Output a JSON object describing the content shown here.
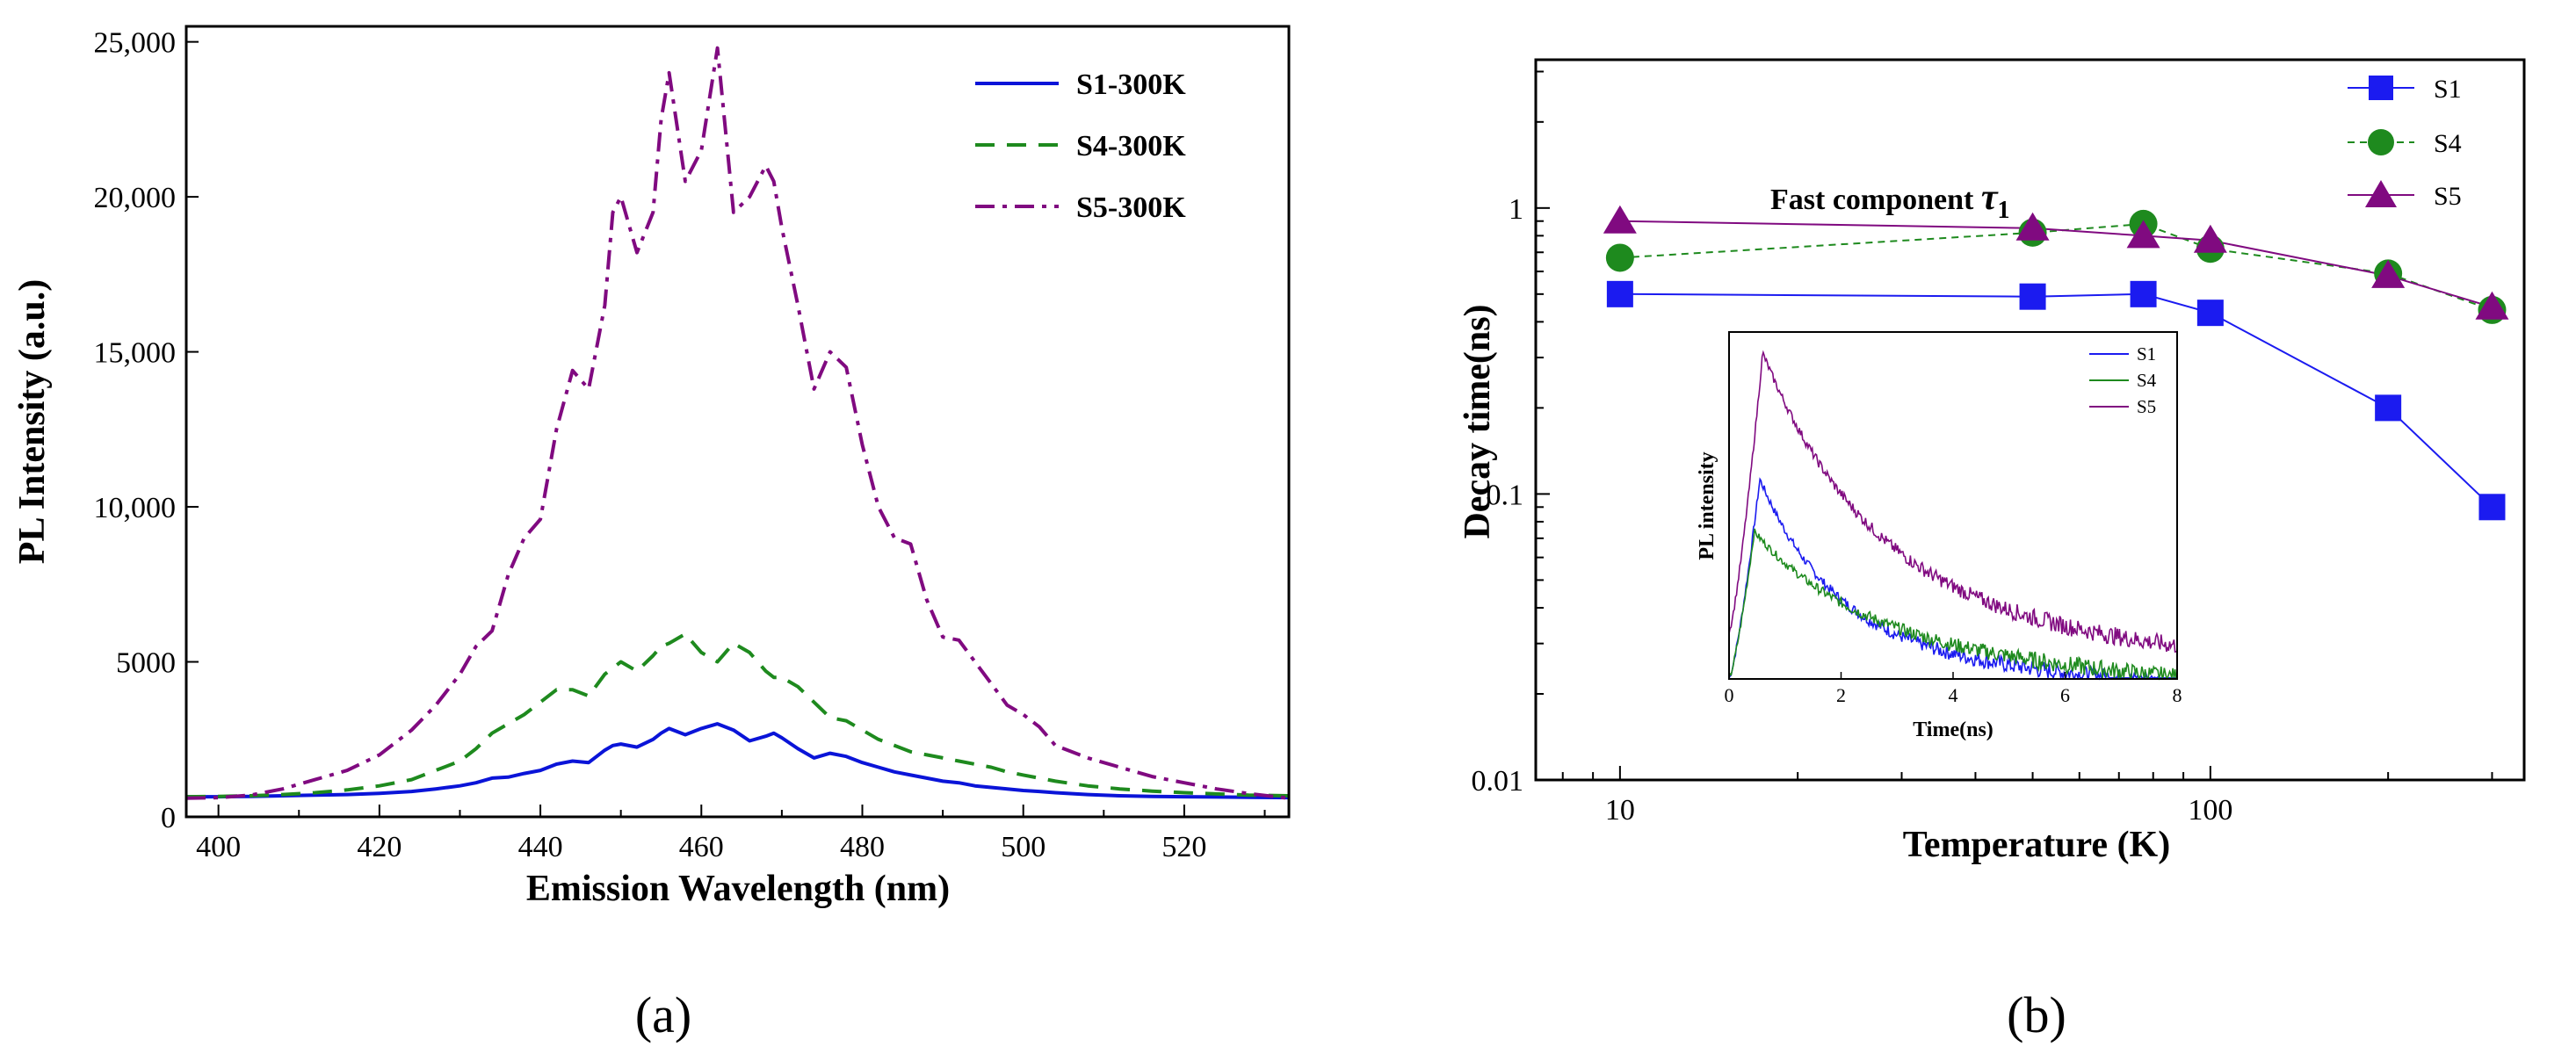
{
  "panel_labels": {
    "a": "(a)",
    "b": "(b)"
  },
  "chart_data": [
    {
      "id": "a",
      "type": "line",
      "xlabel": "Emission Wavelength (nm)",
      "ylabel": "PL Intensity (a.u.)",
      "xlim": [
        396,
        533
      ],
      "ylim": [
        0,
        25500
      ],
      "xticks": [
        400,
        420,
        440,
        460,
        480,
        500,
        520
      ],
      "xtick_labels": [
        "400",
        "420",
        "440",
        "460",
        "480",
        "500",
        "520"
      ],
      "yticks": [
        0,
        5000,
        10000,
        15000,
        20000,
        25000
      ],
      "ytick_labels": [
        "0",
        "5000",
        "10,000",
        "15,000",
        "20,000",
        "25,000"
      ],
      "legend_position": "top-right",
      "x": [
        396,
        400,
        404,
        408,
        412,
        416,
        420,
        424,
        427,
        430,
        432,
        434,
        436,
        438,
        440,
        442,
        444,
        446,
        448,
        449,
        450,
        452,
        454,
        455,
        456,
        458,
        460,
        462,
        464,
        466,
        468,
        469,
        470,
        472,
        474,
        476,
        478,
        480,
        482,
        484,
        486,
        488,
        490,
        492,
        494,
        496,
        498,
        500,
        502,
        504,
        508,
        512,
        516,
        520,
        524,
        528,
        533
      ],
      "series": [
        {
          "name": "S1-300K",
          "color": "#0a14d8",
          "style": "solid",
          "values": [
            650,
            650,
            660,
            680,
            700,
            720,
            760,
            820,
            900,
            1000,
            1100,
            1250,
            1280,
            1400,
            1500,
            1700,
            1800,
            1750,
            2150,
            2300,
            2350,
            2250,
            2500,
            2700,
            2850,
            2650,
            2850,
            3000,
            2800,
            2450,
            2600,
            2700,
            2550,
            2200,
            1900,
            2050,
            1950,
            1750,
            1600,
            1450,
            1350,
            1250,
            1150,
            1100,
            1000,
            950,
            900,
            850,
            820,
            780,
            720,
            680,
            660,
            650,
            640,
            630,
            620
          ]
        },
        {
          "name": "S4-300K",
          "color": "#1e8a1e",
          "style": "dashed",
          "values": [
            650,
            660,
            680,
            720,
            780,
            870,
            1000,
            1200,
            1500,
            1800,
            2200,
            2700,
            3000,
            3300,
            3700,
            4100,
            4100,
            3900,
            4600,
            4800,
            5000,
            4700,
            5200,
            5500,
            5600,
            5900,
            5300,
            5000,
            5600,
            5300,
            4700,
            4500,
            4500,
            4200,
            3700,
            3200,
            3100,
            2800,
            2500,
            2300,
            2100,
            2000,
            1900,
            1800,
            1700,
            1600,
            1450,
            1350,
            1250,
            1150,
            1000,
            900,
            830,
            780,
            740,
            700,
            680
          ]
        },
        {
          "name": "S5-300K",
          "color": "#800a80",
          "style": "dashdot",
          "values": [
            600,
            620,
            700,
            900,
            1200,
            1500,
            2000,
            2800,
            3600,
            4600,
            5500,
            6000,
            7800,
            9000,
            9600,
            12500,
            14400,
            13800,
            16500,
            19500,
            20000,
            18200,
            19500,
            22500,
            24000,
            20500,
            21500,
            24800,
            19500,
            20000,
            21000,
            20500,
            19000,
            16500,
            13800,
            15000,
            14500,
            12000,
            10000,
            9000,
            8800,
            7000,
            5800,
            5700,
            5000,
            4300,
            3600,
            3300,
            2900,
            2300,
            1900,
            1600,
            1300,
            1100,
            900,
            750,
            600
          ]
        }
      ]
    },
    {
      "id": "b",
      "type": "line",
      "scale": "log-log",
      "xlabel": "Temperature (K)",
      "ylabel": "Decay time(ns)",
      "xlim": [
        7.2,
        340
      ],
      "ylim": [
        0.01,
        3.3
      ],
      "xticks": [
        10,
        100
      ],
      "xtick_labels": [
        "10",
        "100"
      ],
      "yticks": [
        0.01,
        0.1,
        1
      ],
      "ytick_labels": [
        "0.01",
        "0.1",
        "1"
      ],
      "annotation_text": "Fast component ",
      "annotation_symbol": "τ",
      "annotation_subscript": "1",
      "legend_position": "top-right",
      "series": [
        {
          "name": "S1",
          "color": "#1b1bf0",
          "marker": "square",
          "x": [
            10,
            50,
            77,
            100,
            200,
            300
          ],
          "values": [
            0.5,
            0.49,
            0.5,
            0.43,
            0.2,
            0.09
          ]
        },
        {
          "name": "S4",
          "color": "#1e8a1e",
          "marker": "circle",
          "x": [
            10,
            50,
            77,
            100,
            200,
            300
          ],
          "values": [
            0.67,
            0.82,
            0.88,
            0.72,
            0.59,
            0.44
          ]
        },
        {
          "name": "S5",
          "color": "#800a80",
          "marker": "triangle",
          "x": [
            10,
            50,
            77,
            100,
            200,
            300
          ],
          "values": [
            0.9,
            0.85,
            0.8,
            0.77,
            0.58,
            0.45
          ]
        }
      ],
      "inset": {
        "type": "line",
        "xlabel": "Time(ns)",
        "ylabel": "PL intensity",
        "xlim": [
          0,
          8
        ],
        "ylim": [
          0,
          0.33
        ],
        "xticks": [
          0,
          2,
          4,
          6,
          8
        ],
        "xtick_labels": [
          "0",
          "2",
          "4",
          "6",
          "8"
        ],
        "legend_position": "top-right",
        "series": [
          {
            "name": "S1",
            "color": "#1b1bf0",
            "peak": 0.19,
            "peak_t": 0.55,
            "start": 0.0,
            "tail": 0.025,
            "tau": 1.35
          },
          {
            "name": "S4",
            "color": "#1e8a1e",
            "peak": 0.14,
            "peak_t": 0.45,
            "start": 0.0,
            "tail": 0.03,
            "tau": 1.9
          },
          {
            "name": "S5",
            "color": "#800a80",
            "peak": 0.31,
            "peak_t": 0.6,
            "start": 0.045,
            "tail": 0.055,
            "tau": 2.0
          }
        ]
      }
    }
  ]
}
